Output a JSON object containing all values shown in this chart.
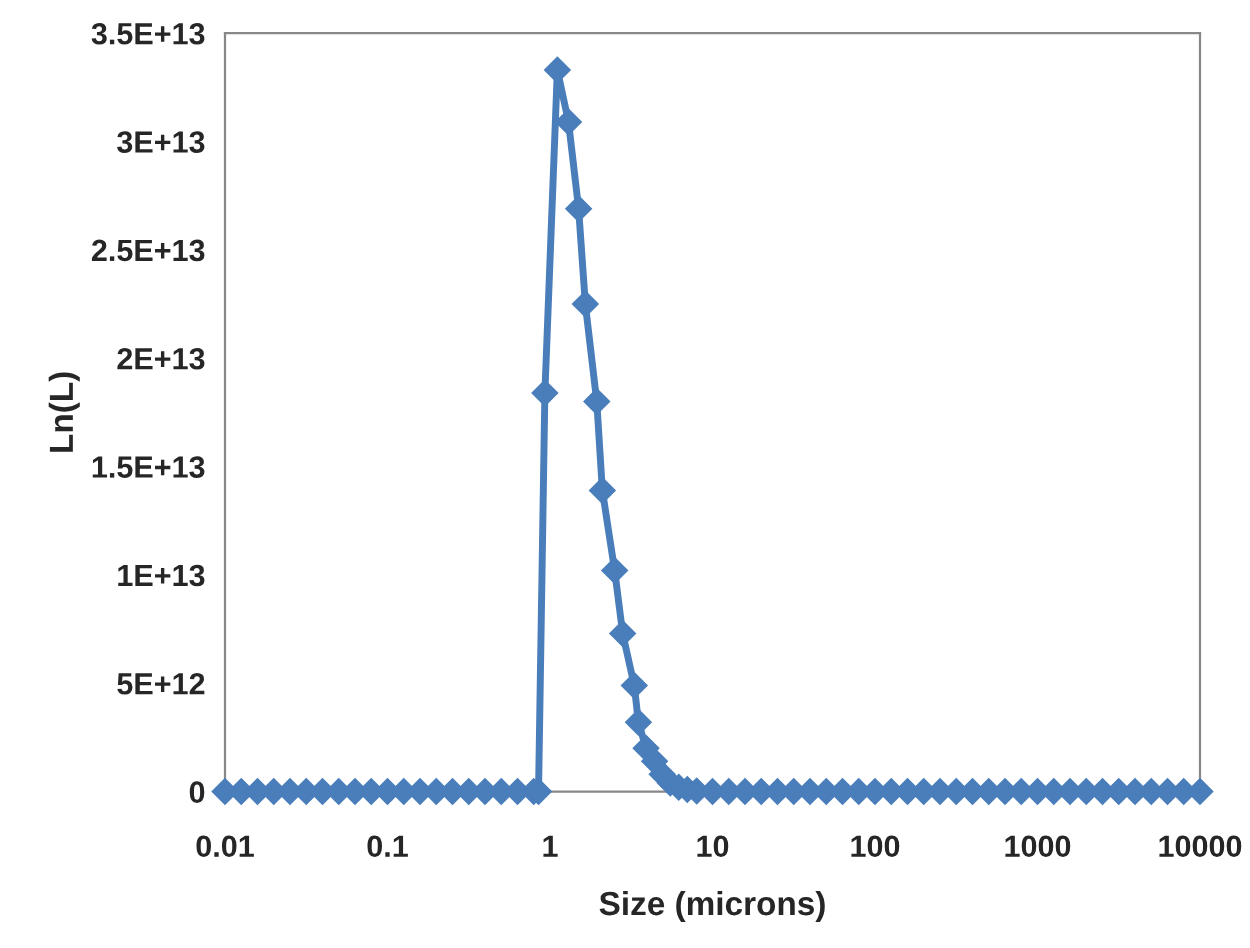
{
  "chart_data": {
    "type": "line",
    "xlabel": "Size (microns)",
    "ylabel": "Ln(L)",
    "log": "x",
    "marker": "diamond",
    "line_style": "solid",
    "grid": false,
    "legend": false,
    "series": [
      {
        "color": "#4a7ebb",
        "x": [
          0.01,
          0.01259,
          0.01585,
          0.01995,
          0.02512,
          0.03162,
          0.03981,
          0.05012,
          0.0631,
          0.07943,
          0.1,
          0.1259,
          0.1585,
          0.1995,
          0.2512,
          0.3162,
          0.3981,
          0.5012,
          0.631,
          0.7943,
          0.85,
          0.93,
          1.11,
          1.3,
          1.5,
          1.65,
          1.94,
          2.1,
          2.5,
          2.8,
          3.3,
          3.5,
          3.9,
          4.4,
          4.9,
          5.5,
          6.2,
          7,
          8,
          10,
          12.59,
          15.85,
          19.95,
          25.12,
          31.62,
          39.81,
          50.12,
          63.1,
          79.43,
          100,
          125.9,
          158.5,
          199.5,
          251.2,
          316.2,
          398.1,
          501.2,
          631,
          794.3,
          1000,
          1259,
          1585,
          1995,
          2512,
          3162,
          3981,
          5012,
          6310,
          7943,
          10000
        ],
        "values": [
          0,
          0,
          0,
          0,
          0,
          0,
          0,
          0,
          0,
          0,
          0,
          0,
          0,
          0,
          0,
          0,
          0,
          0,
          0,
          0,
          0,
          18400000000000.0,
          33300000000000.0,
          30900000000000.0,
          26900000000000.0,
          22500000000000.0,
          18000000000000.0,
          13900000000000.0,
          10200000000000.0,
          7300000000000.0,
          4900000000000.0,
          3200000000000.0,
          2000000000000.0,
          1400000000000.0,
          800000000000.0,
          400000000000.0,
          200000000000.0,
          100000000000.0,
          30000000000.0,
          0,
          0,
          0,
          0,
          0,
          0,
          0,
          0,
          0,
          0,
          0,
          0,
          0,
          0,
          0,
          0,
          0,
          0,
          0,
          0,
          0,
          0,
          0,
          0,
          0,
          0,
          0,
          0,
          0,
          0,
          0
        ]
      }
    ],
    "xlim": [
      0.01,
      10000
    ],
    "xticks": [
      0.01,
      0.1,
      1,
      10,
      100,
      1000,
      10000
    ],
    "ylim": [
      0,
      35000000000000.0
    ],
    "yticks": [
      {
        "value": 0,
        "label": "0"
      },
      {
        "value": 5000000000000.0,
        "label": "5E+12"
      },
      {
        "value": 10000000000000.0,
        "label": "1E+13"
      },
      {
        "value": 15000000000000.0,
        "label": "1.5E+13"
      },
      {
        "value": 20000000000000.0,
        "label": "2E+13"
      },
      {
        "value": 25000000000000.0,
        "label": "2.5E+13"
      },
      {
        "value": 30000000000000.0,
        "label": "3E+13"
      },
      {
        "value": 35000000000000.0,
        "label": "3.5E+13"
      }
    ]
  }
}
